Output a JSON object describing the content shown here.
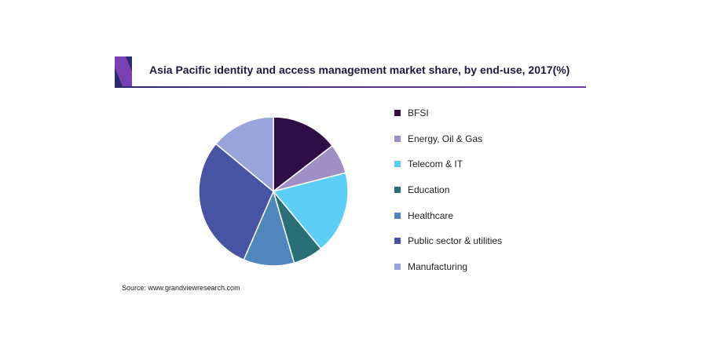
{
  "header": {
    "title": "Asia Pacific identity and access management market share, by end-use, 2017(%)"
  },
  "footer": {
    "source": "Source: www.grandviewresearch.com"
  },
  "colors": {
    "logo_dark": "#2b2a6e",
    "logo_light": "#7a3fb0",
    "rule": "#2b2a6e"
  },
  "chart_data": {
    "type": "pie",
    "title": "Asia Pacific identity and access management market share, by end-use, 2017(%)",
    "legend_position": "right",
    "start_angle_deg": 0,
    "direction": "clockwise",
    "slices": [
      {
        "label": "BFSI",
        "value": 14.5,
        "color": "#2e0f45"
      },
      {
        "label": "Energy, Oil & Gas",
        "value": 6.5,
        "color": "#a08fc4"
      },
      {
        "label": "Telecom & IT",
        "value": 18.0,
        "color": "#5ccdf4"
      },
      {
        "label": "Education",
        "value": 6.5,
        "color": "#2a6f78"
      },
      {
        "label": "Healthcare",
        "value": 11.0,
        "color": "#4f87bd"
      },
      {
        "label": "Public sector & utilities",
        "value": 29.5,
        "color": "#4753a3"
      },
      {
        "label": "Manufacturing",
        "value": 14.0,
        "color": "#98a4dc"
      }
    ]
  }
}
